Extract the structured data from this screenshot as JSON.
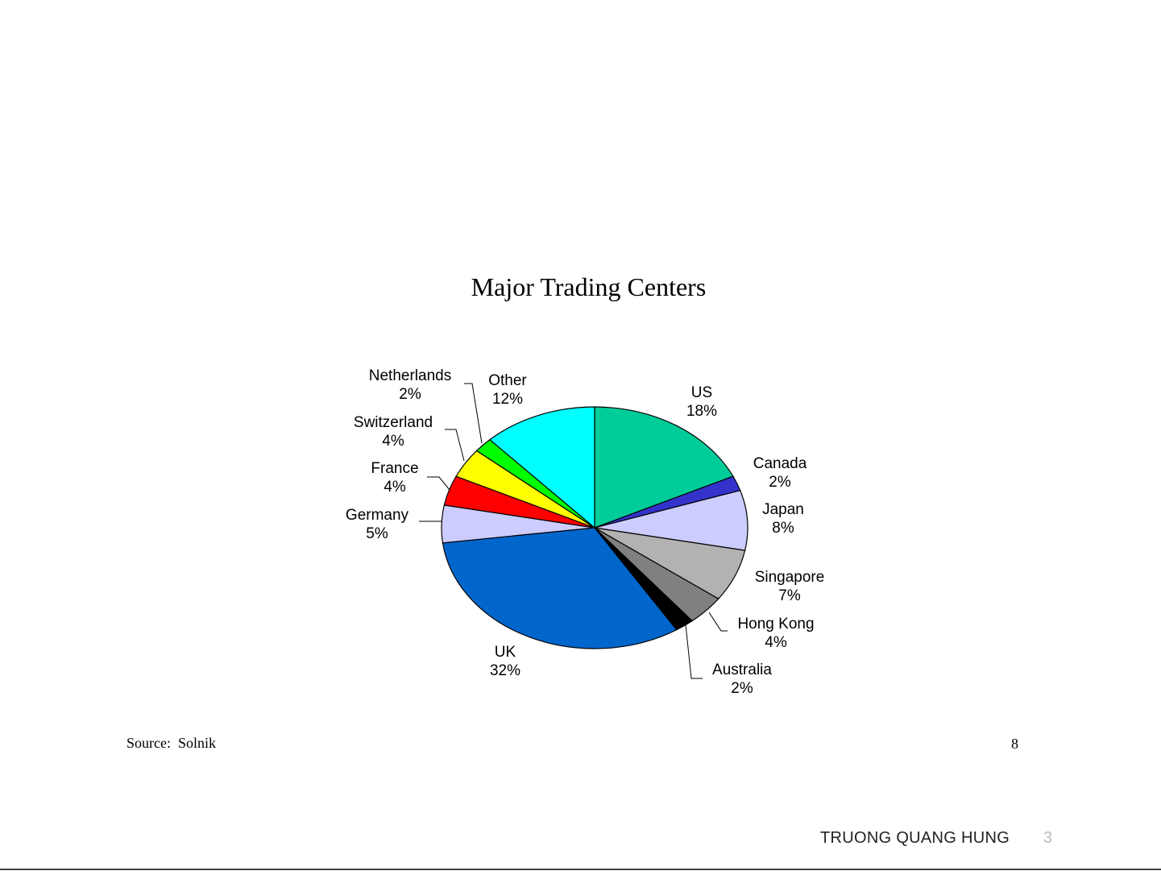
{
  "slide": {
    "source_text": "Source:  Solnik",
    "page_number": "8",
    "footer_author": "TRUONG QUANG HUNG",
    "footer_slide_number": "3"
  },
  "chart_data": {
    "type": "pie",
    "title": "Major Trading Centers",
    "slices": [
      {
        "label": "US",
        "value": 18,
        "value_label": "18%",
        "color": "#00CC99"
      },
      {
        "label": "Canada",
        "value": 2,
        "value_label": "2%",
        "color": "#3333CC"
      },
      {
        "label": "Japan",
        "value": 8,
        "value_label": "8%",
        "color": "#CCCCFF"
      },
      {
        "label": "Singapore",
        "value": 7,
        "value_label": "7%",
        "color": "#B2B2B2"
      },
      {
        "label": "Hong Kong",
        "value": 4,
        "value_label": "4%",
        "color": "#808080"
      },
      {
        "label": "Australia",
        "value": 2,
        "value_label": "2%",
        "color": "#000000"
      },
      {
        "label": "UK",
        "value": 32,
        "value_label": "32%",
        "color": "#0066CC"
      },
      {
        "label": "Germany",
        "value": 5,
        "value_label": "5%",
        "color": "#CCCCFF"
      },
      {
        "label": "France",
        "value": 4,
        "value_label": "4%",
        "color": "#FF0000"
      },
      {
        "label": "Switzerland",
        "value": 4,
        "value_label": "4%",
        "color": "#FFFF00"
      },
      {
        "label": "Netherlands",
        "value": 2,
        "value_label": "2%",
        "color": "#00FF00"
      },
      {
        "label": "Other",
        "value": 12,
        "value_label": "12%",
        "color": "#00FFFF"
      }
    ]
  }
}
